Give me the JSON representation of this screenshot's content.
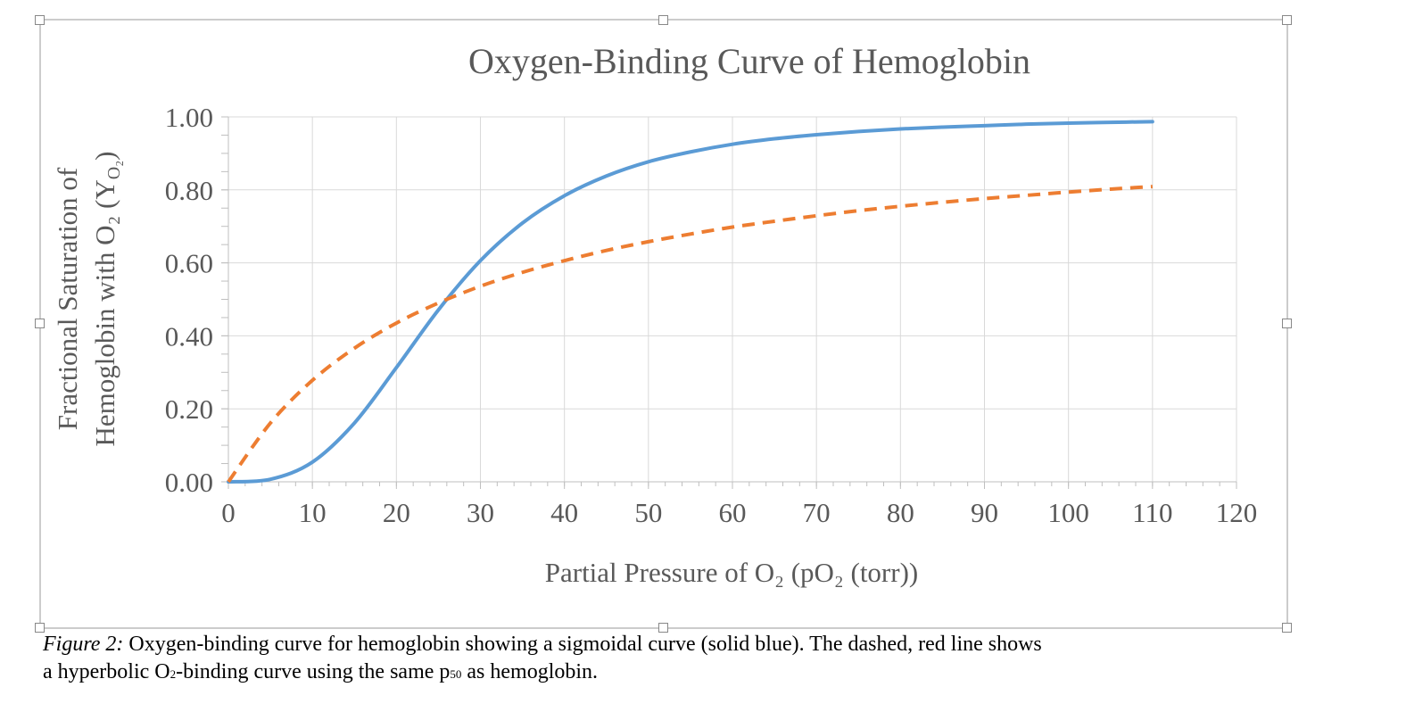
{
  "chart_data": {
    "type": "line",
    "title": "Oxygen-Binding Curve of Hemoglobin",
    "xlabel": "Partial Pressure of O₂ (pO₂ (torr))",
    "ylabel_line1": "Fractional Saturation of",
    "ylabel_line2": "Hemoglobin with O₂ (Y",
    "ylabel_sub": "O₂",
    "ylabel_close": ")",
    "xlim": [
      0,
      120
    ],
    "ylim": [
      0,
      1
    ],
    "xticks": [
      "0",
      "10",
      "20",
      "30",
      "40",
      "50",
      "60",
      "70",
      "80",
      "90",
      "100",
      "110",
      "120"
    ],
    "yticks": [
      "0.00",
      "0.20",
      "0.40",
      "0.60",
      "0.80",
      "1.00"
    ],
    "grid": true,
    "x": [
      0,
      5,
      10,
      15,
      20,
      25,
      30,
      35,
      40,
      45,
      50,
      55,
      60,
      65,
      70,
      75,
      80,
      85,
      90,
      95,
      100,
      105,
      110
    ],
    "series": [
      {
        "style": "solid",
        "color": "#5B9BD5",
        "values": [
          0,
          0.007,
          0.054,
          0.161,
          0.313,
          0.471,
          0.606,
          0.709,
          0.784,
          0.838,
          0.877,
          0.904,
          0.925,
          0.94,
          0.951,
          0.96,
          0.967,
          0.972,
          0.976,
          0.98,
          0.983,
          0.985,
          0.987
        ]
      },
      {
        "style": "dashed",
        "color": "#ED7D31",
        "values": [
          0,
          0.161,
          0.278,
          0.366,
          0.435,
          0.49,
          0.536,
          0.574,
          0.606,
          0.634,
          0.658,
          0.679,
          0.698,
          0.714,
          0.729,
          0.743,
          0.755,
          0.766,
          0.776,
          0.785,
          0.794,
          0.802,
          0.809
        ]
      }
    ]
  },
  "caption": {
    "label": "Figure 2:",
    "line1": " Oxygen-binding curve for hemoglobin showing a sigmoidal curve (solid blue). The dashed, red line shows",
    "line2a": "a hyperbolic O",
    "line2_sub1": "2",
    "line2b": "-binding curve using the same p",
    "line2_sub2": "50",
    "line2c": " as hemoglobin."
  }
}
